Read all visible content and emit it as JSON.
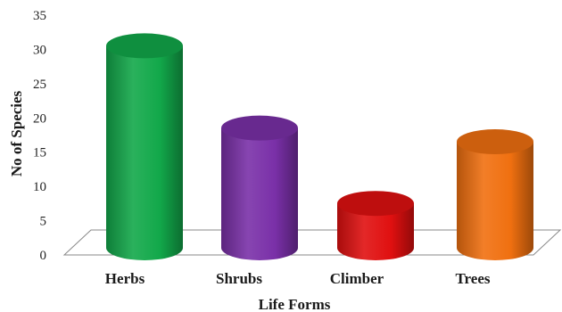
{
  "chart_data": {
    "type": "bar",
    "title": "",
    "xlabel": "Life Forms",
    "ylabel": "No of Species",
    "ylim": [
      0,
      35
    ],
    "yticks": [
      0,
      5,
      10,
      15,
      20,
      25,
      30,
      35
    ],
    "categories": [
      "Herbs",
      "Shrubs",
      "Climber",
      "Trees"
    ],
    "values": [
      30,
      18,
      7,
      16
    ],
    "grid": false,
    "legend": "none",
    "bar_style": "3d-cylinder",
    "colors": {
      "Herbs": "#12a84a",
      "Shrubs": "#7a30a8",
      "Climber": "#e01010",
      "Trees": "#f07010"
    },
    "floor_color": "#ffffff",
    "axis_color": "#888888"
  }
}
